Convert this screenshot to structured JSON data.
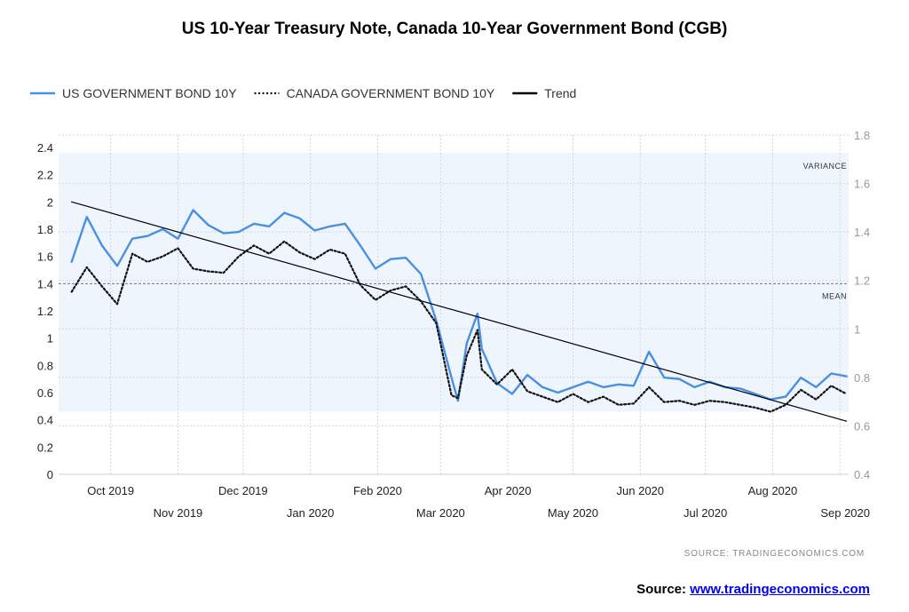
{
  "chart_data": {
    "type": "line",
    "title": "US 10-Year Treasury Note, Canada 10-Year Government Bond (CGB)",
    "legend": [
      {
        "name": "US GOVERNMENT BOND 10Y",
        "style": "solid",
        "color": "#4a90e2"
      },
      {
        "name": "CANADA GOVERNMENT BOND 10Y",
        "style": "dotted",
        "color": "#111111"
      },
      {
        "name": "Trend",
        "style": "solid",
        "color": "#000000"
      }
    ],
    "legend_position": "top-left",
    "y_left": {
      "ticks": [
        "0",
        "0.2",
        "0.4",
        "0.6",
        "0.8",
        "1",
        "1.2",
        "1.4",
        "1.6",
        "1.8",
        "2",
        "2.2",
        "2.4"
      ],
      "range": [
        0,
        2.4
      ]
    },
    "y_right": {
      "ticks": [
        "0.4",
        "0.6",
        "0.8",
        "1",
        "1.2",
        "1.4",
        "1.6",
        "1.8"
      ],
      "range": [
        0.4,
        1.8
      ]
    },
    "x_ticks_upper": [
      "Oct 2019",
      "Dec 2019",
      "Feb 2020",
      "Apr 2020",
      "Jun 2020",
      "Aug 2020"
    ],
    "x_ticks_lower": [
      "Nov 2019",
      "Jan 2020",
      "Mar 2020",
      "May 2020",
      "Jul 2020",
      "Sep 2020"
    ],
    "variance_label": "VARIANCE",
    "variance_band": [
      0.46,
      2.36
    ],
    "mean_label": "MEAN",
    "mean_value": 1.4,
    "grid": true,
    "series": [
      {
        "name": "US GOVERNMENT BOND 10Y",
        "dates": [
          "2019-09-13",
          "2019-09-20",
          "2019-09-27",
          "2019-10-04",
          "2019-10-11",
          "2019-10-18",
          "2019-10-25",
          "2019-11-01",
          "2019-11-08",
          "2019-11-15",
          "2019-11-22",
          "2019-11-29",
          "2019-12-06",
          "2019-12-13",
          "2019-12-20",
          "2019-12-27",
          "2020-01-03",
          "2020-01-10",
          "2020-01-17",
          "2020-01-24",
          "2020-01-31",
          "2020-02-07",
          "2020-02-14",
          "2020-02-21",
          "2020-02-28",
          "2020-03-06",
          "2020-03-09",
          "2020-03-13",
          "2020-03-18",
          "2020-03-20",
          "2020-03-27",
          "2020-04-03",
          "2020-04-10",
          "2020-04-17",
          "2020-04-24",
          "2020-05-01",
          "2020-05-08",
          "2020-05-15",
          "2020-05-22",
          "2020-05-29",
          "2020-06-05",
          "2020-06-12",
          "2020-06-19",
          "2020-06-26",
          "2020-07-03",
          "2020-07-10",
          "2020-07-17",
          "2020-07-24",
          "2020-07-31",
          "2020-08-07",
          "2020-08-14",
          "2020-08-21",
          "2020-08-28",
          "2020-09-04"
        ],
        "values": [
          1.56,
          1.89,
          1.68,
          1.53,
          1.73,
          1.75,
          1.8,
          1.73,
          1.94,
          1.83,
          1.77,
          1.78,
          1.84,
          1.82,
          1.92,
          1.88,
          1.79,
          1.82,
          1.84,
          1.68,
          1.51,
          1.58,
          1.59,
          1.47,
          1.13,
          0.71,
          0.54,
          0.96,
          1.18,
          0.92,
          0.67,
          0.59,
          0.73,
          0.64,
          0.6,
          0.64,
          0.68,
          0.64,
          0.66,
          0.65,
          0.9,
          0.71,
          0.7,
          0.64,
          0.68,
          0.64,
          0.63,
          0.59,
          0.55,
          0.57,
          0.71,
          0.64,
          0.74,
          0.72
        ]
      },
      {
        "name": "CANADA GOVERNMENT BOND 10Y",
        "dates": [
          "2019-09-13",
          "2019-09-20",
          "2019-09-27",
          "2019-10-04",
          "2019-10-11",
          "2019-10-18",
          "2019-10-25",
          "2019-11-01",
          "2019-11-08",
          "2019-11-15",
          "2019-11-22",
          "2019-11-29",
          "2019-12-06",
          "2019-12-13",
          "2019-12-20",
          "2019-12-27",
          "2020-01-03",
          "2020-01-10",
          "2020-01-17",
          "2020-01-24",
          "2020-01-31",
          "2020-02-07",
          "2020-02-14",
          "2020-02-21",
          "2020-02-28",
          "2020-03-06",
          "2020-03-09",
          "2020-03-13",
          "2020-03-18",
          "2020-03-20",
          "2020-03-27",
          "2020-04-03",
          "2020-04-10",
          "2020-04-17",
          "2020-04-24",
          "2020-05-01",
          "2020-05-08",
          "2020-05-15",
          "2020-05-22",
          "2020-05-29",
          "2020-06-05",
          "2020-06-12",
          "2020-06-19",
          "2020-06-26",
          "2020-07-03",
          "2020-07-10",
          "2020-07-17",
          "2020-07-24",
          "2020-07-31",
          "2020-08-07",
          "2020-08-14",
          "2020-08-21",
          "2020-08-28",
          "2020-09-04"
        ],
        "values": [
          1.34,
          1.52,
          1.38,
          1.25,
          1.62,
          1.56,
          1.6,
          1.66,
          1.51,
          1.49,
          1.48,
          1.6,
          1.68,
          1.62,
          1.71,
          1.63,
          1.58,
          1.65,
          1.62,
          1.39,
          1.28,
          1.35,
          1.38,
          1.27,
          1.11,
          0.58,
          0.56,
          0.87,
          1.06,
          0.77,
          0.66,
          0.77,
          0.61,
          0.57,
          0.53,
          0.59,
          0.53,
          0.57,
          0.51,
          0.52,
          0.64,
          0.53,
          0.54,
          0.51,
          0.54,
          0.53,
          0.51,
          0.49,
          0.46,
          0.51,
          0.62,
          0.55,
          0.65,
          0.59
        ]
      },
      {
        "name": "Trend",
        "dates": [
          "2019-09-13",
          "2020-09-04"
        ],
        "values": [
          2.0,
          0.39
        ]
      }
    ]
  },
  "source_small": "SOURCE:  TRADINGECONOMICS.COM",
  "footer": {
    "label": "Source: ",
    "link": "www.tradingeconomics.com"
  }
}
